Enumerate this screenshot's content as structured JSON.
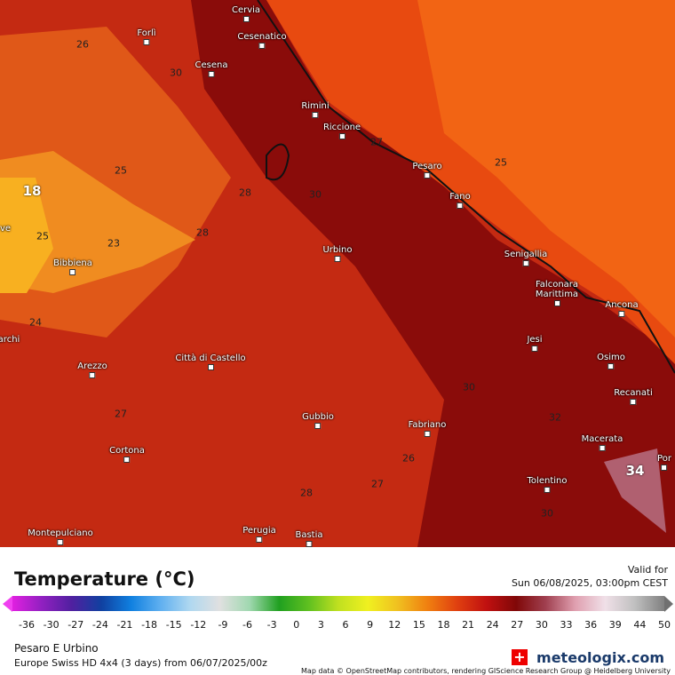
{
  "map": {
    "cities": [
      "Forlì",
      "Cervia",
      "Cesenatico",
      "Cesena",
      "Rimini",
      "Riccione",
      "Pesaro",
      "Fano",
      "Urbino",
      "Senigallia",
      "Falconara Marittima",
      "Ancona",
      "Jesi",
      "Osimo",
      "Recanati",
      "Macerata",
      "Tolentino",
      "Fabriano",
      "Gubbio",
      "Città di Castello",
      "Arezzo",
      "Bibbiena",
      "Cortona",
      "Perugia",
      "Bastia",
      "Montepulciano",
      "Por",
      "ve",
      "archi"
    ],
    "contour_labels": [
      26,
      30,
      25,
      18,
      25,
      23,
      24,
      27,
      25,
      30,
      28,
      27,
      32,
      34,
      28,
      27,
      26,
      30,
      30,
      28
    ],
    "attribution": "Map data © OpenStreetMap contributors, rendering GIScience Research Group @ Heidelberg University"
  },
  "legend": {
    "title": "Temperature (°C)",
    "valid_label": "Valid for",
    "valid_time": "Sun 06/08/2025, 03:00pm CEST",
    "ticks": [
      -36,
      -30,
      -27,
      -24,
      -21,
      -18,
      -15,
      -12,
      -9,
      -6,
      -3,
      0,
      3,
      6,
      9,
      12,
      15,
      18,
      21,
      24,
      27,
      30,
      33,
      36,
      39,
      44,
      50
    ]
  },
  "footer": {
    "region": "Pesaro E Urbino",
    "model": "Europe Swiss HD 4x4 (3 days) from 06/07/2025/00z",
    "brand": "meteologix.com"
  }
}
